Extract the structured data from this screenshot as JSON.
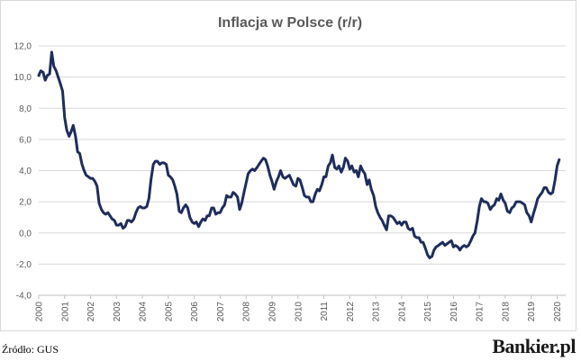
{
  "footer": {
    "source": "Źródło: GUS",
    "brand": "Bankier.pl"
  },
  "chart_data": {
    "type": "line",
    "title": "Inflacja w Polsce (r/r)",
    "xlabel": "",
    "ylabel": "",
    "ylim": [
      -4,
      12
    ],
    "yticks": [
      "12,0",
      "10,0",
      "8,0",
      "6,0",
      "4,0",
      "2,0",
      "0,0",
      "-2,0",
      "-4,0"
    ],
    "ytick_values": [
      12,
      10,
      8,
      6,
      4,
      2,
      0,
      -2,
      -4
    ],
    "xlim": [
      2000,
      2020.33
    ],
    "xticks": [
      "2000",
      "2001",
      "2002",
      "2003",
      "2004",
      "2005",
      "2006",
      "2007",
      "2008",
      "2009",
      "2010",
      "2011",
      "2012",
      "2013",
      "2014",
      "2015",
      "2016",
      "2017",
      "2018",
      "2019",
      "2020"
    ],
    "grid": true,
    "line_color": "#1f2d5c",
    "series": [
      {
        "points": [
          [
            2000.0,
            10.1
          ],
          [
            2000.08,
            10.4
          ],
          [
            2000.17,
            10.3
          ],
          [
            2000.25,
            9.8
          ],
          [
            2000.33,
            10.1
          ],
          [
            2000.42,
            10.2
          ],
          [
            2000.5,
            11.6
          ],
          [
            2000.58,
            10.7
          ],
          [
            2000.67,
            10.4
          ],
          [
            2000.75,
            10.0
          ],
          [
            2000.83,
            9.6
          ],
          [
            2000.92,
            9.1
          ],
          [
            2001.0,
            7.4
          ],
          [
            2001.08,
            6.6
          ],
          [
            2001.17,
            6.2
          ],
          [
            2001.25,
            6.5
          ],
          [
            2001.33,
            6.9
          ],
          [
            2001.42,
            6.2
          ],
          [
            2001.5,
            5.2
          ],
          [
            2001.58,
            5.1
          ],
          [
            2001.67,
            4.4
          ],
          [
            2001.75,
            4.0
          ],
          [
            2001.83,
            3.7
          ],
          [
            2001.92,
            3.6
          ],
          [
            2002.0,
            3.5
          ],
          [
            2002.08,
            3.5
          ],
          [
            2002.17,
            3.3
          ],
          [
            2002.25,
            3.0
          ],
          [
            2002.33,
            1.9
          ],
          [
            2002.42,
            1.5
          ],
          [
            2002.5,
            1.3
          ],
          [
            2002.58,
            1.2
          ],
          [
            2002.67,
            1.3
          ],
          [
            2002.75,
            1.1
          ],
          [
            2002.83,
            0.9
          ],
          [
            2002.92,
            0.8
          ],
          [
            2003.0,
            0.5
          ],
          [
            2003.08,
            0.5
          ],
          [
            2003.17,
            0.6
          ],
          [
            2003.25,
            0.3
          ],
          [
            2003.33,
            0.4
          ],
          [
            2003.42,
            0.8
          ],
          [
            2003.5,
            0.8
          ],
          [
            2003.58,
            0.7
          ],
          [
            2003.67,
            0.9
          ],
          [
            2003.75,
            1.3
          ],
          [
            2003.83,
            1.6
          ],
          [
            2003.92,
            1.7
          ],
          [
            2004.0,
            1.6
          ],
          [
            2004.08,
            1.6
          ],
          [
            2004.17,
            1.7
          ],
          [
            2004.25,
            2.2
          ],
          [
            2004.33,
            3.4
          ],
          [
            2004.42,
            4.4
          ],
          [
            2004.5,
            4.6
          ],
          [
            2004.58,
            4.6
          ],
          [
            2004.67,
            4.4
          ],
          [
            2004.75,
            4.5
          ],
          [
            2004.83,
            4.5
          ],
          [
            2004.92,
            4.4
          ],
          [
            2005.0,
            3.7
          ],
          [
            2005.08,
            3.6
          ],
          [
            2005.17,
            3.4
          ],
          [
            2005.25,
            3.0
          ],
          [
            2005.33,
            2.5
          ],
          [
            2005.42,
            1.4
          ],
          [
            2005.5,
            1.3
          ],
          [
            2005.58,
            1.6
          ],
          [
            2005.67,
            1.8
          ],
          [
            2005.75,
            1.6
          ],
          [
            2005.83,
            1.0
          ],
          [
            2005.92,
            0.7
          ],
          [
            2006.0,
            0.6
          ],
          [
            2006.08,
            0.7
          ],
          [
            2006.17,
            0.4
          ],
          [
            2006.25,
            0.7
          ],
          [
            2006.33,
            0.9
          ],
          [
            2006.42,
            0.8
          ],
          [
            2006.5,
            1.1
          ],
          [
            2006.58,
            1.1
          ],
          [
            2006.67,
            1.6
          ],
          [
            2006.75,
            1.6
          ],
          [
            2006.83,
            1.2
          ],
          [
            2006.92,
            1.3
          ],
          [
            2007.0,
            1.3
          ],
          [
            2007.08,
            1.6
          ],
          [
            2007.17,
            1.8
          ],
          [
            2007.25,
            2.4
          ],
          [
            2007.33,
            2.3
          ],
          [
            2007.42,
            2.3
          ],
          [
            2007.5,
            2.6
          ],
          [
            2007.58,
            2.5
          ],
          [
            2007.67,
            2.3
          ],
          [
            2007.75,
            1.5
          ],
          [
            2007.83,
            1.9
          ],
          [
            2007.92,
            2.6
          ],
          [
            2008.0,
            3.2
          ],
          [
            2008.08,
            3.8
          ],
          [
            2008.17,
            4.0
          ],
          [
            2008.25,
            4.1
          ],
          [
            2008.33,
            4.0
          ],
          [
            2008.42,
            4.2
          ],
          [
            2008.5,
            4.4
          ],
          [
            2008.58,
            4.6
          ],
          [
            2008.67,
            4.8
          ],
          [
            2008.75,
            4.7
          ],
          [
            2008.83,
            4.3
          ],
          [
            2008.92,
            3.7
          ],
          [
            2009.0,
            3.3
          ],
          [
            2009.08,
            2.8
          ],
          [
            2009.17,
            3.3
          ],
          [
            2009.25,
            3.6
          ],
          [
            2009.33,
            4.0
          ],
          [
            2009.42,
            3.6
          ],
          [
            2009.5,
            3.5
          ],
          [
            2009.58,
            3.6
          ],
          [
            2009.67,
            3.7
          ],
          [
            2009.75,
            3.4
          ],
          [
            2009.83,
            3.1
          ],
          [
            2009.92,
            3.0
          ],
          [
            2010.0,
            3.5
          ],
          [
            2010.08,
            3.4
          ],
          [
            2010.17,
            2.9
          ],
          [
            2010.25,
            2.4
          ],
          [
            2010.33,
            2.3
          ],
          [
            2010.42,
            2.3
          ],
          [
            2010.5,
            2.0
          ],
          [
            2010.58,
            2.0
          ],
          [
            2010.67,
            2.5
          ],
          [
            2010.75,
            2.8
          ],
          [
            2010.83,
            2.7
          ],
          [
            2010.92,
            3.1
          ],
          [
            2011.0,
            3.6
          ],
          [
            2011.08,
            3.6
          ],
          [
            2011.17,
            4.3
          ],
          [
            2011.25,
            4.5
          ],
          [
            2011.33,
            5.0
          ],
          [
            2011.42,
            4.2
          ],
          [
            2011.5,
            4.1
          ],
          [
            2011.58,
            4.3
          ],
          [
            2011.67,
            3.9
          ],
          [
            2011.75,
            4.2
          ],
          [
            2011.83,
            4.8
          ],
          [
            2011.92,
            4.6
          ],
          [
            2012.0,
            4.1
          ],
          [
            2012.08,
            4.3
          ],
          [
            2012.17,
            3.9
          ],
          [
            2012.25,
            4.0
          ],
          [
            2012.33,
            3.6
          ],
          [
            2012.42,
            4.3
          ],
          [
            2012.5,
            4.0
          ],
          [
            2012.58,
            3.8
          ],
          [
            2012.67,
            3.1
          ],
          [
            2012.75,
            3.4
          ],
          [
            2012.83,
            2.8
          ],
          [
            2012.92,
            2.4
          ],
          [
            2013.0,
            1.7
          ],
          [
            2013.08,
            1.3
          ],
          [
            2013.17,
            1.0
          ],
          [
            2013.25,
            0.8
          ],
          [
            2013.33,
            0.5
          ],
          [
            2013.42,
            0.2
          ],
          [
            2013.5,
            1.1
          ],
          [
            2013.58,
            1.1
          ],
          [
            2013.67,
            1.0
          ],
          [
            2013.75,
            0.8
          ],
          [
            2013.83,
            0.6
          ],
          [
            2013.92,
            0.7
          ],
          [
            2014.0,
            0.5
          ],
          [
            2014.08,
            0.7
          ],
          [
            2014.17,
            0.7
          ],
          [
            2014.25,
            0.3
          ],
          [
            2014.33,
            0.2
          ],
          [
            2014.42,
            0.3
          ],
          [
            2014.5,
            -0.2
          ],
          [
            2014.58,
            -0.3
          ],
          [
            2014.67,
            -0.3
          ],
          [
            2014.75,
            -0.6
          ],
          [
            2014.83,
            -0.6
          ],
          [
            2014.92,
            -1.0
          ],
          [
            2015.0,
            -1.4
          ],
          [
            2015.08,
            -1.6
          ],
          [
            2015.17,
            -1.5
          ],
          [
            2015.25,
            -1.1
          ],
          [
            2015.33,
            -0.9
          ],
          [
            2015.42,
            -0.8
          ],
          [
            2015.5,
            -0.7
          ],
          [
            2015.58,
            -0.6
          ],
          [
            2015.67,
            -0.8
          ],
          [
            2015.75,
            -0.7
          ],
          [
            2015.83,
            -0.6
          ],
          [
            2015.92,
            -0.5
          ],
          [
            2016.0,
            -0.9
          ],
          [
            2016.08,
            -0.8
          ],
          [
            2016.17,
            -0.9
          ],
          [
            2016.25,
            -1.1
          ],
          [
            2016.33,
            -0.9
          ],
          [
            2016.42,
            -0.8
          ],
          [
            2016.5,
            -0.9
          ],
          [
            2016.58,
            -0.8
          ],
          [
            2016.67,
            -0.5
          ],
          [
            2016.75,
            -0.2
          ],
          [
            2016.83,
            0.0
          ],
          [
            2016.92,
            0.8
          ],
          [
            2017.0,
            1.7
          ],
          [
            2017.08,
            2.2
          ],
          [
            2017.17,
            2.0
          ],
          [
            2017.25,
            2.0
          ],
          [
            2017.33,
            1.9
          ],
          [
            2017.42,
            1.5
          ],
          [
            2017.5,
            1.7
          ],
          [
            2017.58,
            1.8
          ],
          [
            2017.67,
            2.2
          ],
          [
            2017.75,
            2.1
          ],
          [
            2017.83,
            2.5
          ],
          [
            2017.92,
            2.1
          ],
          [
            2018.0,
            1.9
          ],
          [
            2018.08,
            1.4
          ],
          [
            2018.17,
            1.3
          ],
          [
            2018.25,
            1.6
          ],
          [
            2018.33,
            1.7
          ],
          [
            2018.42,
            2.0
          ],
          [
            2018.5,
            2.0
          ],
          [
            2018.58,
            2.0
          ],
          [
            2018.67,
            1.9
          ],
          [
            2018.75,
            1.8
          ],
          [
            2018.83,
            1.3
          ],
          [
            2018.92,
            1.1
          ],
          [
            2019.0,
            0.7
          ],
          [
            2019.08,
            1.2
          ],
          [
            2019.17,
            1.7
          ],
          [
            2019.25,
            2.2
          ],
          [
            2019.33,
            2.4
          ],
          [
            2019.42,
            2.6
          ],
          [
            2019.5,
            2.9
          ],
          [
            2019.58,
            2.9
          ],
          [
            2019.67,
            2.6
          ],
          [
            2019.75,
            2.5
          ],
          [
            2019.83,
            2.6
          ],
          [
            2019.92,
            3.4
          ],
          [
            2020.0,
            4.3
          ],
          [
            2020.08,
            4.7
          ]
        ]
      }
    ]
  }
}
